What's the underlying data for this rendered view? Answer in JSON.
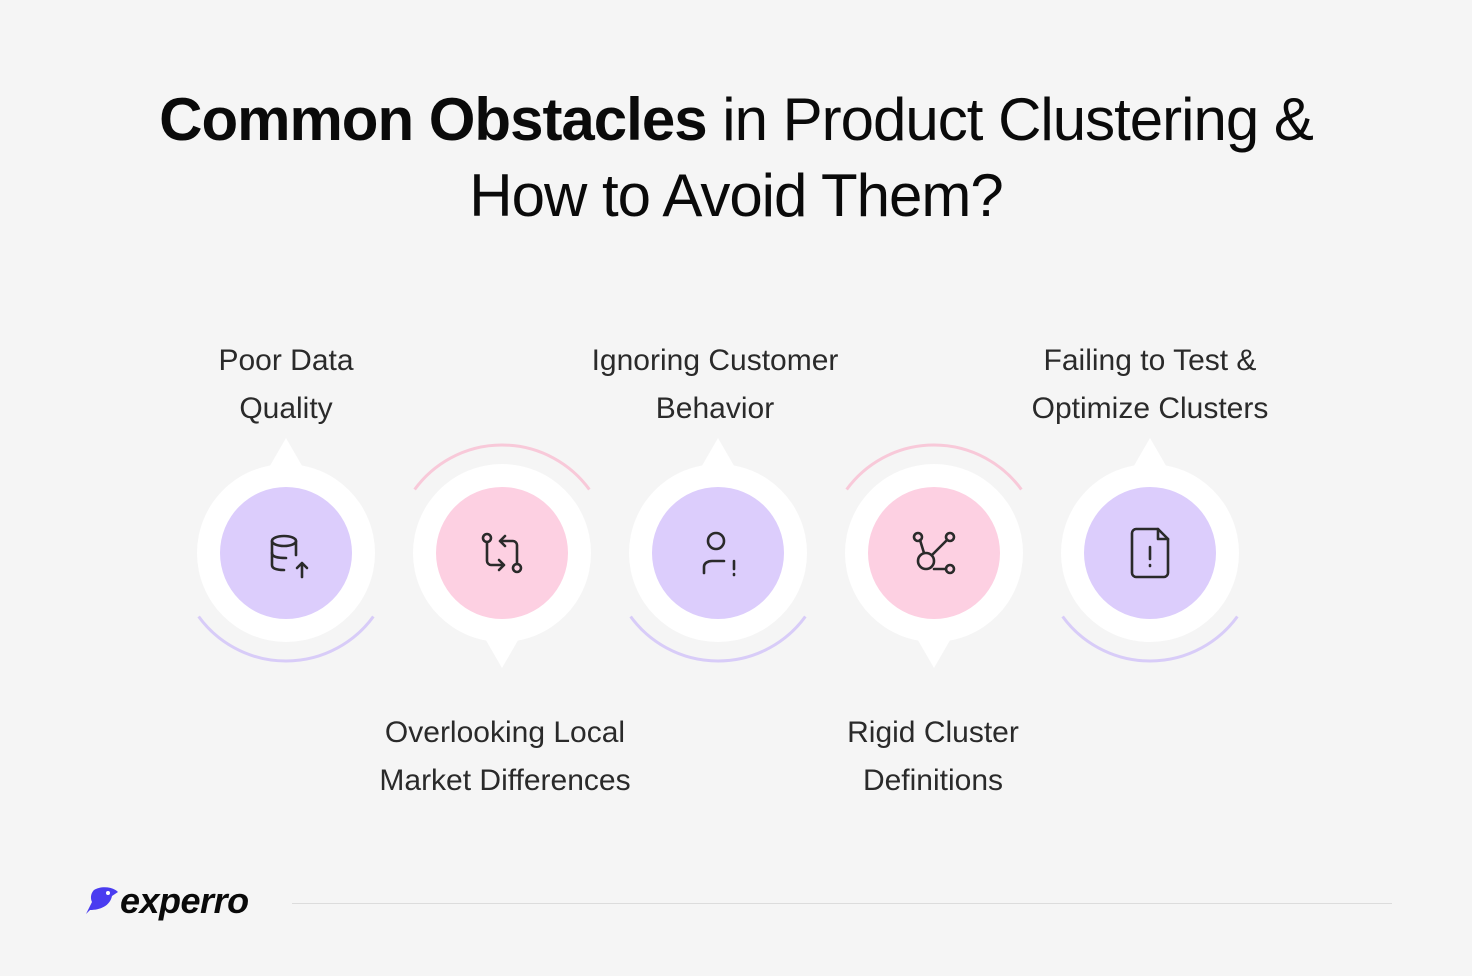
{
  "title": {
    "bold": "Common Obstacles",
    "rest_line1": " in Product Clustering &",
    "line2": "How to Avoid Them?"
  },
  "colors": {
    "purple": "#dccdfc",
    "pink": "#fdd0e2",
    "purple_arc": "#d8ccf8",
    "pink_arc": "#f8c9d9",
    "logo": "#4a3cf0"
  },
  "steps": [
    {
      "label": "Poor Data\nQuality",
      "icon": "database-upload-icon",
      "color": "purple",
      "pointer": "up"
    },
    {
      "label": "Overlooking Local\nMarket Differences",
      "icon": "git-compare-icon",
      "color": "pink",
      "pointer": "down"
    },
    {
      "label": "Ignoring Customer\nBehavior",
      "icon": "user-alert-icon",
      "color": "purple",
      "pointer": "up"
    },
    {
      "label": "Rigid Cluster\nDefinitions",
      "icon": "network-nodes-icon",
      "color": "pink",
      "pointer": "down"
    },
    {
      "label": "Failing to Test &\nOptimize Clusters",
      "icon": "file-alert-icon",
      "color": "purple",
      "pointer": "up"
    }
  ],
  "footer": {
    "logo_text": "experro"
  }
}
